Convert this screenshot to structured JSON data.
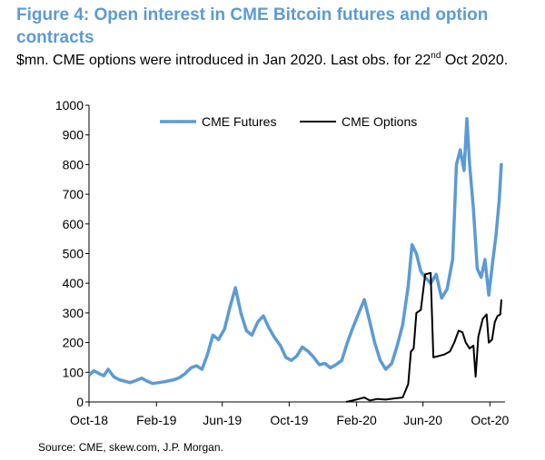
{
  "header": {
    "title": "Figure 4: Open interest in CME Bitcoin futures and option contracts",
    "subtitle_pre": "$mn. CME options were introduced in Jan 2020. Last obs. for 22",
    "subtitle_sup": "nd",
    "subtitle_post": " Oct 2020."
  },
  "source": "Source: CME, skew.com, J.P. Morgan.",
  "colors": {
    "futures": "#5b9bd5",
    "options": "#000000"
  },
  "chart_data": {
    "type": "line",
    "ylim": [
      0,
      1000
    ],
    "yticks": [
      0,
      100,
      200,
      300,
      400,
      500,
      600,
      700,
      800,
      900,
      1000
    ],
    "xlim": [
      "2018-10-01",
      "2020-10-22"
    ],
    "xticks": [
      "Oct-18",
      "Feb-19",
      "Jun-19",
      "Oct-19",
      "Feb-20",
      "Jun-20",
      "Oct-20"
    ],
    "legend_position": "top",
    "series": [
      {
        "name": "CME Futures",
        "color": "#5b9bd5",
        "points": [
          [
            "2018-10-01",
            90
          ],
          [
            "2018-10-10",
            105
          ],
          [
            "2018-10-20",
            95
          ],
          [
            "2018-10-28",
            88
          ],
          [
            "2018-11-05",
            110
          ],
          [
            "2018-11-15",
            85
          ],
          [
            "2018-11-25",
            75
          ],
          [
            "2018-12-05",
            70
          ],
          [
            "2018-12-15",
            65
          ],
          [
            "2018-12-25",
            72
          ],
          [
            "2019-01-05",
            80
          ],
          [
            "2019-01-15",
            70
          ],
          [
            "2019-01-25",
            62
          ],
          [
            "2019-02-05",
            65
          ],
          [
            "2019-02-15",
            68
          ],
          [
            "2019-02-25",
            72
          ],
          [
            "2019-03-05",
            75
          ],
          [
            "2019-03-15",
            82
          ],
          [
            "2019-03-25",
            95
          ],
          [
            "2019-04-05",
            115
          ],
          [
            "2019-04-15",
            122
          ],
          [
            "2019-04-25",
            110
          ],
          [
            "2019-05-05",
            160
          ],
          [
            "2019-05-15",
            225
          ],
          [
            "2019-05-25",
            210
          ],
          [
            "2019-06-05",
            245
          ],
          [
            "2019-06-15",
            320
          ],
          [
            "2019-06-25",
            385
          ],
          [
            "2019-07-05",
            300
          ],
          [
            "2019-07-15",
            240
          ],
          [
            "2019-07-25",
            225
          ],
          [
            "2019-08-05",
            270
          ],
          [
            "2019-08-15",
            290
          ],
          [
            "2019-08-25",
            250
          ],
          [
            "2019-09-05",
            215
          ],
          [
            "2019-09-15",
            190
          ],
          [
            "2019-09-25",
            150
          ],
          [
            "2019-10-05",
            140
          ],
          [
            "2019-10-15",
            155
          ],
          [
            "2019-10-25",
            185
          ],
          [
            "2019-11-05",
            170
          ],
          [
            "2019-11-15",
            150
          ],
          [
            "2019-11-25",
            125
          ],
          [
            "2019-12-05",
            130
          ],
          [
            "2019-12-15",
            115
          ],
          [
            "2019-12-25",
            125
          ],
          [
            "2020-01-05",
            140
          ],
          [
            "2020-01-15",
            200
          ],
          [
            "2020-01-25",
            250
          ],
          [
            "2020-02-05",
            300
          ],
          [
            "2020-02-15",
            345
          ],
          [
            "2020-02-25",
            270
          ],
          [
            "2020-03-05",
            200
          ],
          [
            "2020-03-15",
            140
          ],
          [
            "2020-03-25",
            110
          ],
          [
            "2020-04-05",
            130
          ],
          [
            "2020-04-15",
            190
          ],
          [
            "2020-04-25",
            260
          ],
          [
            "2020-05-05",
            390
          ],
          [
            "2020-05-12",
            530
          ],
          [
            "2020-05-20",
            500
          ],
          [
            "2020-05-28",
            440
          ],
          [
            "2020-06-05",
            420
          ],
          [
            "2020-06-15",
            400
          ],
          [
            "2020-06-25",
            430
          ],
          [
            "2020-07-05",
            350
          ],
          [
            "2020-07-15",
            380
          ],
          [
            "2020-07-25",
            480
          ],
          [
            "2020-08-01",
            800
          ],
          [
            "2020-08-08",
            850
          ],
          [
            "2020-08-15",
            780
          ],
          [
            "2020-08-20",
            955
          ],
          [
            "2020-08-25",
            800
          ],
          [
            "2020-09-01",
            650
          ],
          [
            "2020-09-08",
            450
          ],
          [
            "2020-09-15",
            420
          ],
          [
            "2020-09-22",
            480
          ],
          [
            "2020-09-29",
            360
          ],
          [
            "2020-10-06",
            470
          ],
          [
            "2020-10-12",
            560
          ],
          [
            "2020-10-18",
            680
          ],
          [
            "2020-10-22",
            805
          ]
        ]
      },
      {
        "name": "CME Options",
        "color": "#000000",
        "points": [
          [
            "2020-01-13",
            0
          ],
          [
            "2020-01-25",
            5
          ],
          [
            "2020-02-05",
            10
          ],
          [
            "2020-02-15",
            15
          ],
          [
            "2020-02-25",
            5
          ],
          [
            "2020-03-10",
            10
          ],
          [
            "2020-03-25",
            8
          ],
          [
            "2020-04-10",
            12
          ],
          [
            "2020-04-25",
            15
          ],
          [
            "2020-05-05",
            60
          ],
          [
            "2020-05-10",
            170
          ],
          [
            "2020-05-15",
            180
          ],
          [
            "2020-05-20",
            300
          ],
          [
            "2020-05-28",
            310
          ],
          [
            "2020-06-05",
            430
          ],
          [
            "2020-06-15",
            435
          ],
          [
            "2020-06-20",
            150
          ],
          [
            "2020-06-30",
            155
          ],
          [
            "2020-07-10",
            160
          ],
          [
            "2020-07-20",
            170
          ],
          [
            "2020-07-28",
            200
          ],
          [
            "2020-08-05",
            240
          ],
          [
            "2020-08-12",
            235
          ],
          [
            "2020-08-18",
            200
          ],
          [
            "2020-08-25",
            180
          ],
          [
            "2020-09-01",
            190
          ],
          [
            "2020-09-05",
            85
          ],
          [
            "2020-09-10",
            220
          ],
          [
            "2020-09-18",
            280
          ],
          [
            "2020-09-25",
            295
          ],
          [
            "2020-09-29",
            200
          ],
          [
            "2020-10-05",
            210
          ],
          [
            "2020-10-10",
            270
          ],
          [
            "2020-10-15",
            290
          ],
          [
            "2020-10-20",
            295
          ],
          [
            "2020-10-22",
            345
          ]
        ]
      }
    ]
  }
}
